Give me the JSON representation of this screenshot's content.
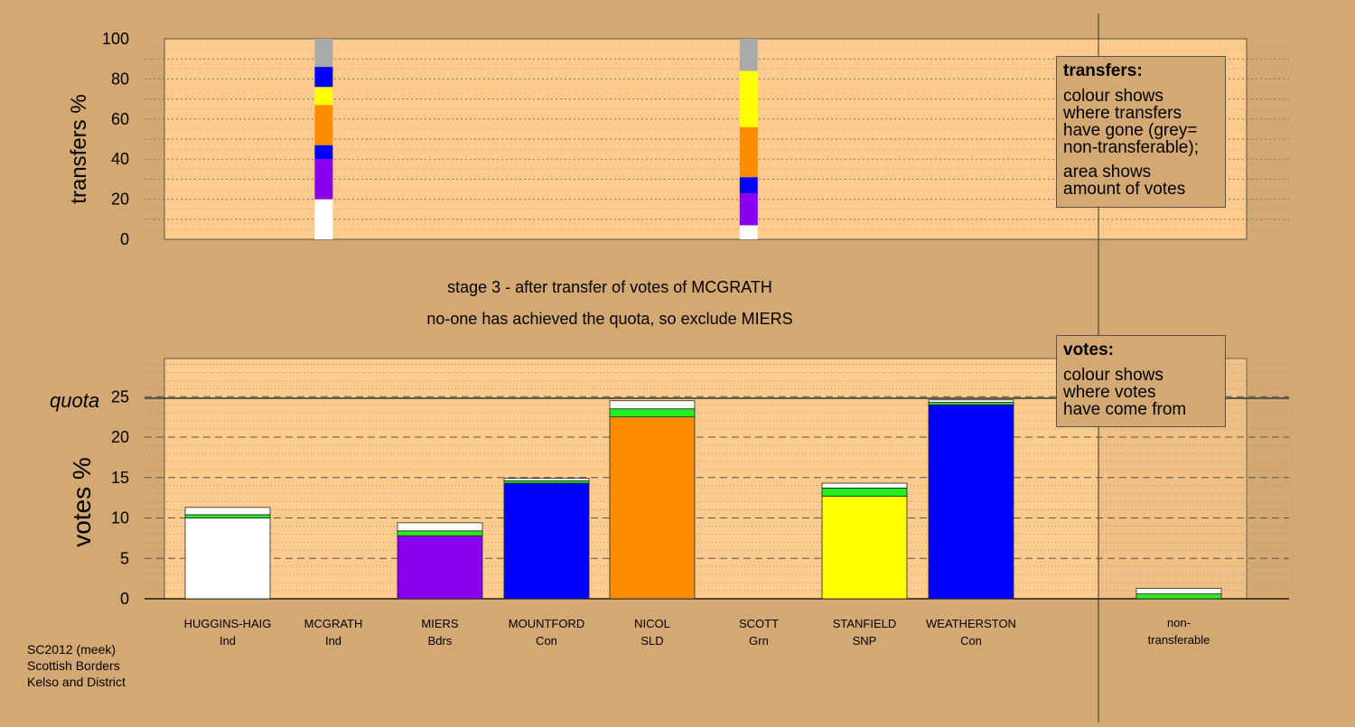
{
  "header": {
    "stage_line": "stage 3 - after transfer of votes of MCGRATH",
    "status_line": "no-one has achieved the quota, so exclude MIERS"
  },
  "legend_transfers": {
    "title": "transfers:",
    "lines1": [
      "colour shows",
      "where transfers",
      "have gone (grey=",
      "non-transferable);"
    ],
    "lines2": [
      "area shows",
      "amount of votes"
    ]
  },
  "legend_votes": {
    "title": "votes:",
    "lines": [
      "colour shows",
      "where votes",
      "have come from"
    ]
  },
  "footer": [
    "SC2012 (meek)",
    "Scottish Borders",
    "Kelso and District"
  ],
  "colors": {
    "background": "#d4a872",
    "plot_bg": "#fdcb8c",
    "Ind": "#ffffff",
    "Bdrs": "#8800ee",
    "Con": "#0000ff",
    "SLD": "#ff8c00",
    "Grn": "#22ee22",
    "SNP": "#ffff00",
    "nontransferable": "#aaaaaa"
  },
  "chart_data": [
    {
      "type": "bar",
      "name": "transfers",
      "ylabel": "transfers %",
      "ylim": [
        0,
        100
      ],
      "yticks": [
        0,
        20,
        40,
        60,
        80,
        100
      ],
      "stacks": [
        {
          "candidate": "MCGRATH",
          "segments": [
            {
              "from": 0,
              "to": 20,
              "color": "#ffffff"
            },
            {
              "from": 20,
              "to": 40,
              "color": "#8800ee"
            },
            {
              "from": 40,
              "to": 47,
              "color": "#0000ff"
            },
            {
              "from": 47,
              "to": 67,
              "color": "#ff8c00"
            },
            {
              "from": 67,
              "to": 76,
              "color": "#ffff00"
            },
            {
              "from": 76,
              "to": 86,
              "color": "#0000ff"
            },
            {
              "from": 86,
              "to": 100,
              "color": "#aaaaaa"
            }
          ]
        },
        {
          "candidate": "SCOTT",
          "segments": [
            {
              "from": 0,
              "to": 7,
              "color": "#ffffff"
            },
            {
              "from": 7,
              "to": 23,
              "color": "#8800ee"
            },
            {
              "from": 23,
              "to": 31,
              "color": "#0000ff"
            },
            {
              "from": 31,
              "to": 56,
              "color": "#ff8c00"
            },
            {
              "from": 56,
              "to": 84,
              "color": "#ffff00"
            },
            {
              "from": 84,
              "to": 100,
              "color": "#aaaaaa"
            }
          ]
        }
      ]
    },
    {
      "type": "bar",
      "name": "votes",
      "ylabel": "votes %",
      "ylim": [
        0,
        30
      ],
      "yticks": [
        0,
        5,
        10,
        15,
        20,
        25
      ],
      "quota": 24.8,
      "quota_label": "quota",
      "categories": [
        "HUGGINS-HAIG",
        "MCGRATH",
        "MIERS",
        "MOUNTFORD",
        "NICOL",
        "SCOTT",
        "STANFIELD",
        "WEATHERSTON",
        "non-transferable"
      ],
      "parties": [
        "Ind",
        "Ind",
        "Bdrs",
        "Con",
        "SLD",
        "Grn",
        "SNP",
        "Con",
        ""
      ],
      "stacks": [
        [
          {
            "v": 10.0,
            "color": "#ffffff"
          },
          {
            "v": 0.4,
            "color": "#22ee22"
          },
          {
            "v": 0.9,
            "color": "#ffffff"
          }
        ],
        [],
        [
          {
            "v": 7.8,
            "color": "#8800ee"
          },
          {
            "v": 0.6,
            "color": "#22ee22"
          },
          {
            "v": 1.0,
            "color": "#ffffff"
          }
        ],
        [
          {
            "v": 14.3,
            "color": "#0000ff"
          },
          {
            "v": 0.3,
            "color": "#22ee22"
          },
          {
            "v": 0.3,
            "color": "#ffffff"
          }
        ],
        [
          {
            "v": 22.5,
            "color": "#ff8c00"
          },
          {
            "v": 1.0,
            "color": "#22ee22"
          },
          {
            "v": 1.0,
            "color": "#ffffff"
          }
        ],
        [],
        [
          {
            "v": 12.7,
            "color": "#ffff00"
          },
          {
            "v": 1.0,
            "color": "#22ee22"
          },
          {
            "v": 0.6,
            "color": "#ffffff"
          }
        ],
        [
          {
            "v": 24.0,
            "color": "#0000ff"
          },
          {
            "v": 0.3,
            "color": "#22ee22"
          },
          {
            "v": 0.3,
            "color": "#ffffff"
          }
        ],
        [
          {
            "v": 0.6,
            "color": "#22ee22"
          },
          {
            "v": 0.7,
            "color": "#ffffff"
          }
        ]
      ]
    }
  ]
}
